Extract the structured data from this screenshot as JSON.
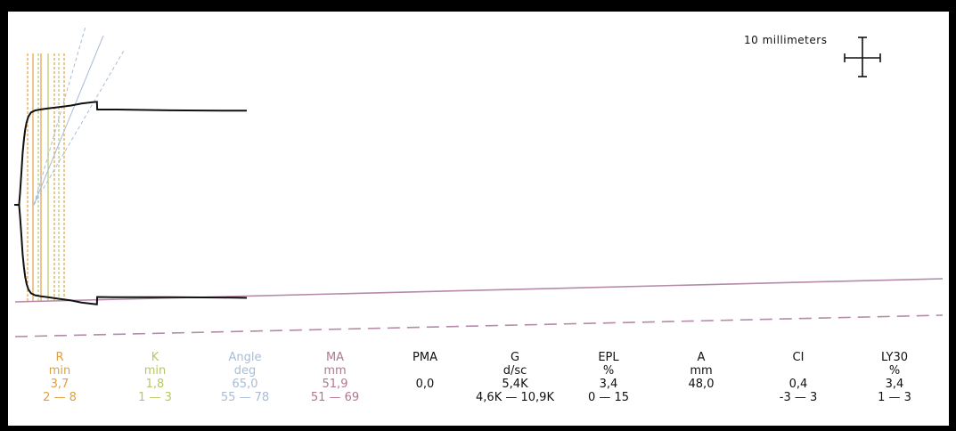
{
  "scale_bar": {
    "label": "10 millimeters"
  },
  "colors": {
    "r": "#e0a040",
    "k": "#b8c860",
    "angle": "#a8bcd8",
    "ma": "#b07890",
    "ink": "#111111",
    "baseline": "#b58aa8"
  },
  "parameters": [
    {
      "key": "r",
      "name": "R",
      "unit": "min",
      "value": "3,7",
      "range": "2 — 8",
      "color": "#e0a040"
    },
    {
      "key": "k",
      "name": "K",
      "unit": "min",
      "value": "1,8",
      "range": "1 — 3",
      "color": "#b8c860"
    },
    {
      "key": "angle",
      "name": "Angle",
      "unit": "deg",
      "value": "65,0",
      "range": "55 — 78",
      "color": "#a8bcd8"
    },
    {
      "key": "ma",
      "name": "MA",
      "unit": "mm",
      "value": "51,9",
      "range": "51 — 69",
      "color": "#b07890"
    },
    {
      "key": "pma",
      "name": "PMA",
      "unit": "",
      "value": "0,0",
      "range": "",
      "color": "#111111"
    },
    {
      "key": "g",
      "name": "G",
      "unit": "d/sc",
      "value": "5,4K",
      "range": "4,6K — 10,9K",
      "color": "#111111"
    },
    {
      "key": "epl",
      "name": "EPL",
      "unit": "%",
      "value": "3,4",
      "range": "0 — 15",
      "color": "#111111"
    },
    {
      "key": "a",
      "name": "A",
      "unit": "mm",
      "value": "48,0",
      "range": "",
      "color": "#111111"
    },
    {
      "key": "ci",
      "name": "CI",
      "unit": "",
      "value": "0,4",
      "range": "-3 — 3",
      "color": "#111111"
    },
    {
      "key": "ly30",
      "name": "LY30",
      "unit": "%",
      "value": "3,4",
      "range": "1 — 3",
      "color": "#111111"
    }
  ],
  "chart_data": {
    "type": "line",
    "title": "",
    "xlabel": "",
    "ylabel": "",
    "grid": false,
    "series": [
      {
        "values": [
          [
            0,
            0
          ],
          [
            3.7,
            0
          ],
          [
            4.5,
            6
          ],
          [
            5.5,
            16
          ],
          [
            6.5,
            26
          ],
          [
            7.5,
            33
          ],
          [
            8.5,
            38
          ],
          [
            9.5,
            41.5
          ],
          [
            11,
            44.5
          ],
          [
            13,
            46.5
          ],
          [
            16,
            47.5
          ],
          [
            20,
            48
          ],
          [
            26,
            48.5
          ],
          [
            32,
            49
          ],
          [
            38,
            49.5
          ],
          [
            44,
            50
          ],
          [
            52,
            51
          ],
          [
            60,
            51.6
          ],
          [
            64,
            51.9
          ],
          [
            64.2,
            48
          ],
          [
            80,
            48
          ],
          [
            120,
            47.6
          ],
          [
            160,
            47.4
          ],
          [
            180,
            47.4
          ]
        ]
      }
    ]
  }
}
